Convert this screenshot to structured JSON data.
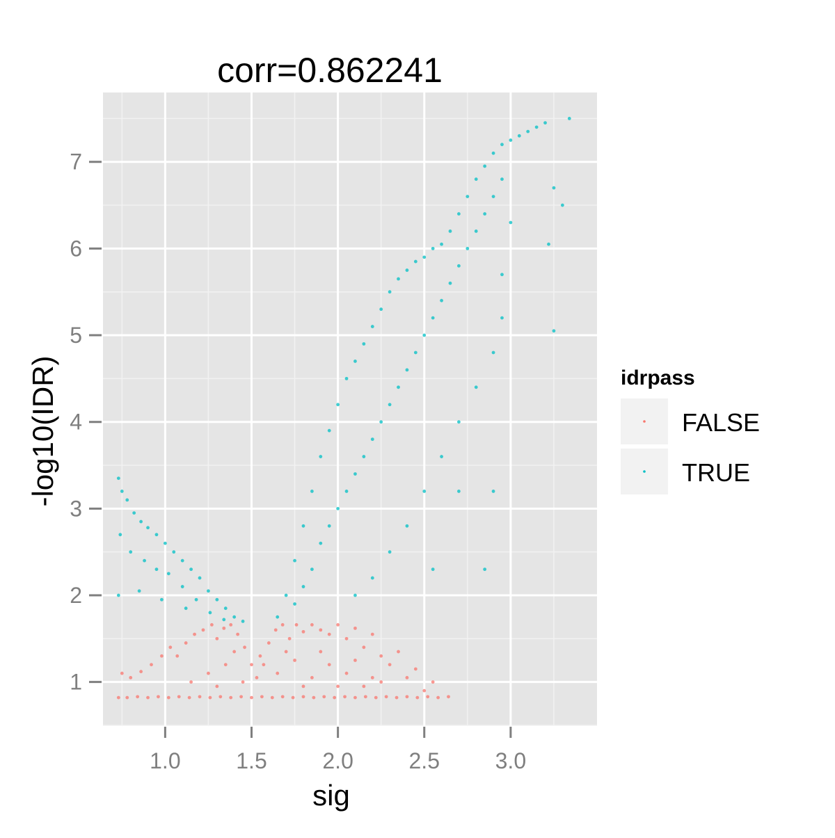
{
  "chart_data": {
    "type": "scatter",
    "title": "corr=0.862241",
    "xlabel": "sig",
    "ylabel": "-log10(IDR)",
    "xlim": [
      0.64,
      3.5
    ],
    "ylim": [
      0.5,
      7.8
    ],
    "x_ticks": [
      1.0,
      1.5,
      2.0,
      2.5,
      3.0
    ],
    "x_tick_labels": [
      "1.0",
      "1.5",
      "2.0",
      "2.5",
      "3.0"
    ],
    "y_ticks": [
      1,
      2,
      3,
      4,
      5,
      6,
      7
    ],
    "y_tick_labels": [
      "1",
      "2",
      "3",
      "4",
      "5",
      "6",
      "7"
    ],
    "grid": true,
    "legend": {
      "title": "idrpass",
      "placement": "right",
      "entries": [
        {
          "label": "FALSE",
          "color": "#F8766D"
        },
        {
          "label": "TRUE",
          "color": "#00BFC4"
        }
      ]
    },
    "series": [
      {
        "name": "FALSE",
        "color": "#F8766D",
        "points": [
          [
            0.73,
            0.82
          ],
          [
            0.78,
            0.82
          ],
          [
            0.84,
            0.83
          ],
          [
            0.9,
            0.82
          ],
          [
            0.96,
            0.83
          ],
          [
            1.02,
            0.82
          ],
          [
            1.08,
            0.83
          ],
          [
            1.14,
            0.82
          ],
          [
            1.2,
            0.83
          ],
          [
            1.26,
            0.82
          ],
          [
            1.32,
            0.83
          ],
          [
            1.38,
            0.82
          ],
          [
            1.44,
            0.83
          ],
          [
            1.5,
            0.82
          ],
          [
            1.56,
            0.83
          ],
          [
            1.62,
            0.82
          ],
          [
            1.68,
            0.83
          ],
          [
            1.74,
            0.82
          ],
          [
            1.8,
            0.83
          ],
          [
            1.86,
            0.82
          ],
          [
            1.92,
            0.83
          ],
          [
            1.98,
            0.82
          ],
          [
            2.04,
            0.83
          ],
          [
            2.1,
            0.82
          ],
          [
            2.16,
            0.83
          ],
          [
            2.22,
            0.82
          ],
          [
            2.28,
            0.83
          ],
          [
            2.34,
            0.82
          ],
          [
            2.4,
            0.83
          ],
          [
            2.46,
            0.82
          ],
          [
            2.52,
            0.83
          ],
          [
            2.58,
            0.82
          ],
          [
            2.64,
            0.83
          ],
          [
            0.75,
            1.1
          ],
          [
            0.8,
            1.05
          ],
          [
            0.86,
            1.12
          ],
          [
            0.92,
            1.2
          ],
          [
            0.98,
            1.3
          ],
          [
            1.03,
            1.4
          ],
          [
            1.07,
            1.3
          ],
          [
            1.12,
            1.45
          ],
          [
            1.17,
            1.55
          ],
          [
            1.22,
            1.6
          ],
          [
            1.27,
            1.66
          ],
          [
            1.3,
            1.5
          ],
          [
            1.34,
            1.62
          ],
          [
            1.38,
            1.66
          ],
          [
            1.42,
            1.55
          ],
          [
            1.46,
            1.4
          ],
          [
            1.5,
            1.2
          ],
          [
            1.53,
            1.05
          ],
          [
            1.57,
            1.2
          ],
          [
            1.6,
            1.45
          ],
          [
            1.64,
            1.6
          ],
          [
            1.68,
            1.66
          ],
          [
            1.72,
            1.5
          ],
          [
            1.76,
            1.66
          ],
          [
            1.8,
            1.58
          ],
          [
            1.85,
            1.66
          ],
          [
            1.9,
            1.6
          ],
          [
            1.95,
            1.55
          ],
          [
            2.0,
            1.66
          ],
          [
            2.05,
            1.5
          ],
          [
            2.1,
            1.62
          ],
          [
            2.15,
            1.4
          ],
          [
            2.2,
            1.55
          ],
          [
            2.25,
            1.3
          ],
          [
            2.3,
            1.2
          ],
          [
            2.35,
            1.35
          ],
          [
            2.4,
            1.05
          ],
          [
            2.45,
            1.15
          ],
          [
            2.5,
            0.9
          ],
          [
            2.55,
            1.0
          ],
          [
            1.15,
            1.0
          ],
          [
            1.25,
            1.1
          ],
          [
            1.35,
            1.2
          ],
          [
            1.45,
            1.0
          ],
          [
            1.55,
            1.3
          ],
          [
            1.65,
            1.1
          ],
          [
            1.75,
            1.25
          ],
          [
            1.85,
            1.05
          ],
          [
            1.95,
            1.2
          ],
          [
            2.05,
            1.1
          ],
          [
            2.15,
            0.95
          ],
          [
            2.25,
            1.0
          ],
          [
            1.3,
            0.95
          ],
          [
            1.4,
            1.35
          ],
          [
            1.7,
            1.35
          ],
          [
            1.8,
            0.95
          ],
          [
            1.9,
            1.35
          ],
          [
            2.0,
            0.95
          ],
          [
            2.1,
            1.25
          ],
          [
            2.2,
            1.05
          ]
        ]
      },
      {
        "name": "TRUE",
        "color": "#00BFC4",
        "points": [
          [
            0.73,
            3.35
          ],
          [
            0.75,
            3.2
          ],
          [
            0.78,
            3.1
          ],
          [
            0.82,
            2.95
          ],
          [
            0.86,
            2.85
          ],
          [
            0.9,
            2.78
          ],
          [
            0.95,
            2.7
          ],
          [
            1.0,
            2.6
          ],
          [
            1.05,
            2.5
          ],
          [
            1.1,
            2.4
          ],
          [
            1.15,
            2.3
          ],
          [
            1.2,
            2.2
          ],
          [
            1.25,
            2.05
          ],
          [
            1.3,
            1.95
          ],
          [
            1.35,
            1.85
          ],
          [
            1.4,
            1.75
          ],
          [
            1.45,
            1.7
          ],
          [
            0.74,
            2.7
          ],
          [
            0.8,
            2.5
          ],
          [
            0.88,
            2.4
          ],
          [
            0.95,
            2.3
          ],
          [
            1.02,
            2.25
          ],
          [
            1.1,
            2.1
          ],
          [
            1.18,
            1.95
          ],
          [
            1.26,
            1.8
          ],
          [
            1.34,
            1.72
          ],
          [
            0.73,
            2.0
          ],
          [
            0.85,
            2.05
          ],
          [
            0.98,
            1.95
          ],
          [
            1.12,
            1.85
          ],
          [
            1.65,
            1.75
          ],
          [
            1.7,
            2.0
          ],
          [
            1.75,
            2.4
          ],
          [
            1.8,
            2.8
          ],
          [
            1.85,
            3.2
          ],
          [
            1.9,
            3.6
          ],
          [
            1.95,
            3.9
          ],
          [
            2.0,
            4.2
          ],
          [
            2.05,
            4.5
          ],
          [
            2.1,
            4.7
          ],
          [
            2.15,
            4.9
          ],
          [
            2.2,
            5.1
          ],
          [
            2.25,
            5.3
          ],
          [
            2.3,
            5.5
          ],
          [
            2.35,
            5.65
          ],
          [
            2.4,
            5.75
          ],
          [
            2.45,
            5.85
          ],
          [
            2.5,
            5.9
          ],
          [
            2.55,
            6.0
          ],
          [
            2.6,
            6.05
          ],
          [
            2.65,
            6.2
          ],
          [
            2.7,
            6.4
          ],
          [
            2.75,
            6.6
          ],
          [
            2.8,
            6.8
          ],
          [
            2.85,
            6.95
          ],
          [
            2.9,
            7.1
          ],
          [
            2.95,
            7.2
          ],
          [
            3.0,
            7.25
          ],
          [
            3.05,
            7.3
          ],
          [
            3.1,
            7.35
          ],
          [
            3.15,
            7.4
          ],
          [
            3.2,
            7.45
          ],
          [
            3.34,
            7.5
          ],
          [
            1.75,
            1.9
          ],
          [
            1.8,
            2.1
          ],
          [
            1.85,
            2.3
          ],
          [
            1.9,
            2.6
          ],
          [
            1.95,
            2.8
          ],
          [
            2.0,
            3.0
          ],
          [
            2.05,
            3.2
          ],
          [
            2.1,
            3.4
          ],
          [
            2.15,
            3.6
          ],
          [
            2.2,
            3.8
          ],
          [
            2.25,
            4.0
          ],
          [
            2.3,
            4.2
          ],
          [
            2.35,
            4.4
          ],
          [
            2.4,
            4.6
          ],
          [
            2.45,
            4.8
          ],
          [
            2.5,
            5.0
          ],
          [
            2.55,
            5.2
          ],
          [
            2.6,
            5.4
          ],
          [
            2.65,
            5.6
          ],
          [
            2.7,
            5.8
          ],
          [
            2.75,
            6.0
          ],
          [
            2.8,
            6.2
          ],
          [
            2.85,
            6.4
          ],
          [
            2.9,
            6.6
          ],
          [
            2.95,
            6.8
          ],
          [
            2.1,
            2.0
          ],
          [
            2.2,
            2.2
          ],
          [
            2.3,
            2.5
          ],
          [
            2.4,
            2.8
          ],
          [
            2.5,
            3.2
          ],
          [
            2.6,
            3.6
          ],
          [
            2.7,
            4.0
          ],
          [
            2.8,
            4.4
          ],
          [
            2.9,
            4.8
          ],
          [
            2.95,
            5.2
          ],
          [
            2.55,
            2.3
          ],
          [
            2.7,
            3.2
          ],
          [
            2.85,
            2.3
          ],
          [
            2.9,
            3.2
          ],
          [
            3.25,
            6.7
          ],
          [
            3.3,
            6.5
          ],
          [
            3.22,
            6.05
          ],
          [
            3.25,
            5.05
          ],
          [
            2.95,
            5.7
          ],
          [
            3.0,
            6.3
          ]
        ]
      }
    ]
  }
}
